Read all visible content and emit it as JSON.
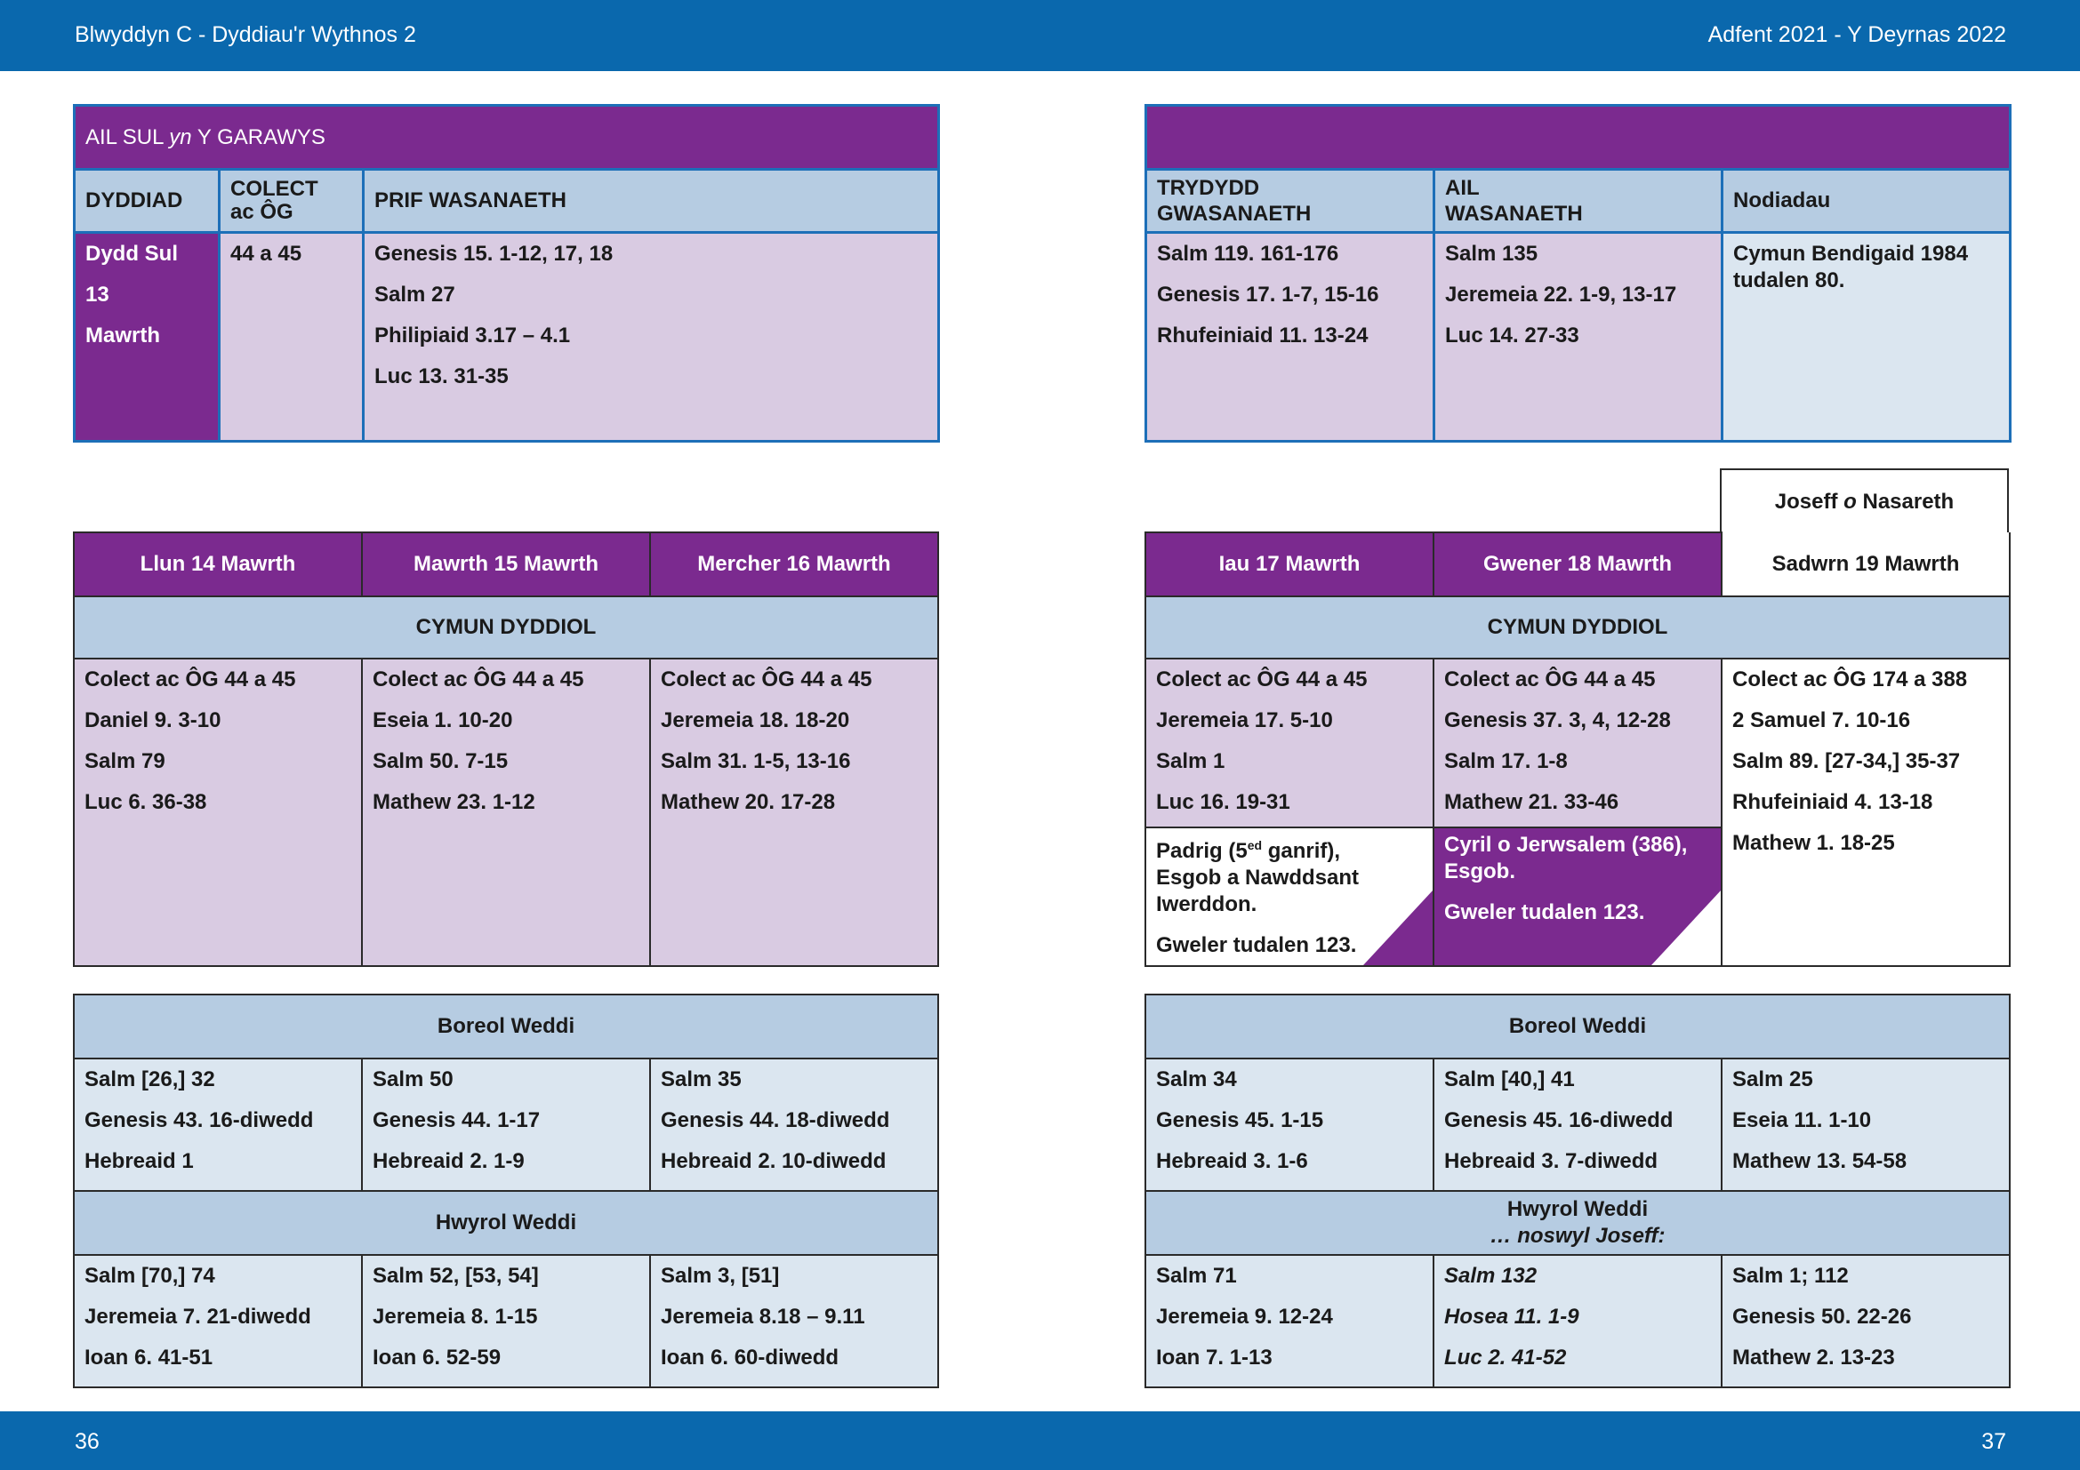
{
  "header": {
    "left": "Blwyddyn  C - Dyddiau'r Wythnos 2",
    "right": "Adfent 2021 - Y Deyrnas 2022"
  },
  "footer": {
    "left_page": "36",
    "right_page": "37"
  },
  "colors": {
    "bar_blue": "#0a68ad",
    "purple": "#7b2a8f",
    "lilac": "#d9cbe2",
    "header_blue": "#b6cce2",
    "pale_blue": "#dbe6f0"
  },
  "sunday": {
    "title_pre": "AIL SUL ",
    "title_em": "yn",
    "title_post": " Y GARAWYS",
    "col_date": "DYDDIAD",
    "col_collect_1": "COLECT",
    "col_collect_2": "ac ÔG",
    "col_main": "PRIF WASANAETH",
    "date_lines": [
      "Dydd Sul",
      "13",
      "Mawrth"
    ],
    "collect": "44 a 45",
    "main": [
      "Genesis 15. 1-12, 17, 18",
      "Salm 27",
      "Philipiaid 3.17 – 4.1",
      "Luc 13. 31-35"
    ]
  },
  "sunday_right": {
    "col_third_1": "TRYDYDD",
    "col_third_2": "GWASANAETH",
    "col_second_1": "AIL",
    "col_second_2": "WASANAETH",
    "col_notes": "Nodiadau",
    "third": [
      "Salm 119. 161-176",
      "Genesis 17. 1-7, 15-16",
      "Rhufeiniaid 11. 13-24"
    ],
    "second": [
      "Salm 135",
      "Jeremeia 22. 1-9, 13-17",
      "Luc 14. 27-33"
    ],
    "notes_1": "Cymun Bendigaid 1984",
    "notes_2": "tudalen 80."
  },
  "left_week": {
    "days": [
      "Llun 14 Mawrth",
      "Mawrth 15 Mawrth",
      "Mercher 16 Mawrth"
    ],
    "cymun_label": "CYMUN DYDDIOL",
    "cymun": [
      [
        "Colect ac ÔG 44 a 45",
        "Daniel 9. 3-10",
        "Salm 79",
        "Luc 6. 36-38"
      ],
      [
        "Colect ac ÔG 44 a 45",
        "Eseia 1. 10-20",
        "Salm 50. 7-15",
        "Mathew 23. 1-12"
      ],
      [
        "Colect ac ÔG 44 a 45",
        "Jeremeia 18. 18-20",
        "Salm 31. 1-5, 13-16",
        "Mathew 20. 17-28"
      ]
    ],
    "morning_label": "Boreol Weddi",
    "morning": [
      [
        "Salm [26,] 32",
        "Genesis 43. 16-diwedd",
        "Hebreaid 1"
      ],
      [
        "Salm 50",
        "Genesis 44. 1-17",
        "Hebreaid 2. 1-9"
      ],
      [
        "Salm 35",
        "Genesis 44. 18-diwedd",
        "Hebreaid 2. 10-diwedd"
      ]
    ],
    "evening_label": "Hwyrol Weddi",
    "evening": [
      [
        "Salm [70,] 74",
        "Jeremeia 7. 21-diwedd",
        "Ioan 6. 41-51"
      ],
      [
        "Salm 52, [53, 54]",
        "Jeremeia 8. 1-15",
        "Ioan 6. 52-59"
      ],
      [
        "Salm 3, [51]",
        "Jeremeia 8.18 – 9.11",
        "Ioan 6. 60-diwedd"
      ]
    ]
  },
  "right_week": {
    "feast_title_pre": "Joseff ",
    "feast_title_em": "o",
    "feast_title_post": " Nasareth",
    "days": [
      "Iau 17 Mawrth",
      "Gwener 18 Mawrth",
      "Sadwrn 19 Mawrth"
    ],
    "cymun_label": "CYMUN DYDDIOL",
    "cymun": [
      [
        "Colect ac ÔG 44 a 45",
        "Jeremeia 17. 5-10",
        "Salm 1",
        "Luc 16. 19-31"
      ],
      [
        "Colect ac ÔG 44 a 45",
        "Genesis 37. 3, 4, 12-28",
        "Salm 17. 1-8",
        "Mathew 21. 33-46"
      ],
      [
        "Colect ac ÔG 174 a 388",
        "2 Samuel 7. 10-16",
        "Salm 89. [27-34,] 35-37",
        "Rhufeiniaid 4. 13-18",
        "Mathew 1. 18-25"
      ]
    ],
    "patrick": {
      "line1_pre": "Padrig (5",
      "line1_sup": "ed",
      "line1_post": " ganrif),",
      "line2": "Esgob a Nawddsant",
      "line3": "Iwerddon.",
      "see": "Gweler tudalen 123."
    },
    "cyril": {
      "line1": "Cyril o Jerwsalem (386),",
      "line2": "Esgob.",
      "see": "Gweler tudalen 123."
    },
    "morning_label": "Boreol Weddi",
    "morning": [
      [
        "Salm 34",
        "Genesis 45. 1-15",
        "Hebreaid 3. 1-6"
      ],
      [
        "Salm [40,] 41",
        "Genesis 45. 16-diwedd",
        "Hebreaid 3. 7-diwedd"
      ],
      [
        "Salm 25",
        "Eseia 11. 1-10",
        "Mathew 13. 54-58"
      ]
    ],
    "evening_label": "Hwyrol Weddi",
    "evening_sub": "… noswyl Joseff:",
    "evening": [
      [
        "Salm 71",
        "Jeremeia 9. 12-24",
        "Ioan 7. 1-13"
      ],
      [
        "Salm 132",
        "Hosea 11. 1-9",
        "Luc 2. 41-52"
      ],
      [
        "Salm 1; 112",
        "Genesis 50. 22-26",
        "Mathew 2. 13-23"
      ]
    ]
  }
}
